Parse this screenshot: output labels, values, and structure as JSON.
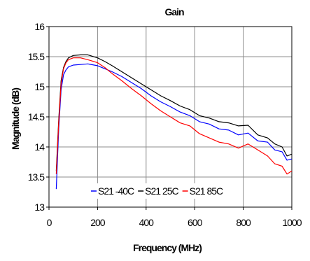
{
  "chart_data": {
    "type": "line",
    "title": "Gain",
    "xlabel": "Frequency (MHz)",
    "ylabel": "Magnitude (dB)",
    "xlim": [
      0,
      1000
    ],
    "ylim": [
      13,
      16
    ],
    "xticks": [
      "0",
      "200",
      "400",
      "600",
      "800",
      "1000"
    ],
    "yticks": [
      "13",
      "13.5",
      "14",
      "14.5",
      "15",
      "15.5",
      "16"
    ],
    "grid": true,
    "legend_position": "bottom-center",
    "series": [
      {
        "name": "S21 -40C",
        "color": "#0000ff",
        "x": [
          30,
          40,
          50,
          60,
          70,
          80,
          100,
          130,
          160,
          200,
          230,
          260,
          300,
          340,
          380,
          420,
          460,
          500,
          540,
          580,
          620,
          660,
          700,
          740,
          780,
          820,
          860,
          900,
          930,
          960,
          980,
          1000
        ],
        "y": [
          13.3,
          14.3,
          14.95,
          15.2,
          15.28,
          15.33,
          15.36,
          15.37,
          15.38,
          15.35,
          15.3,
          15.25,
          15.17,
          15.07,
          14.97,
          14.85,
          14.75,
          14.67,
          14.58,
          14.52,
          14.42,
          14.38,
          14.3,
          14.28,
          14.2,
          14.23,
          14.1,
          14.08,
          13.95,
          13.92,
          13.78,
          13.8
        ]
      },
      {
        "name": "S21 25C",
        "color": "#000000",
        "x": [
          30,
          40,
          50,
          60,
          70,
          80,
          100,
          130,
          160,
          200,
          230,
          260,
          300,
          340,
          380,
          420,
          460,
          500,
          540,
          580,
          620,
          660,
          700,
          740,
          780,
          820,
          860,
          900,
          930,
          960,
          980,
          1000
        ],
        "y": [
          13.6,
          14.45,
          15.1,
          15.32,
          15.42,
          15.48,
          15.52,
          15.53,
          15.53,
          15.48,
          15.42,
          15.35,
          15.25,
          15.15,
          15.05,
          14.95,
          14.85,
          14.77,
          14.68,
          14.62,
          14.52,
          14.48,
          14.42,
          14.4,
          14.35,
          14.36,
          14.2,
          14.15,
          14.05,
          14.0,
          13.85,
          13.88
        ]
      },
      {
        "name": "S21 85C",
        "color": "#ff0000",
        "x": [
          30,
          40,
          50,
          60,
          70,
          80,
          100,
          130,
          160,
          200,
          230,
          260,
          300,
          340,
          380,
          420,
          460,
          500,
          540,
          580,
          620,
          660,
          700,
          740,
          780,
          820,
          860,
          900,
          930,
          960,
          980,
          1000
        ],
        "y": [
          13.55,
          14.4,
          15.05,
          15.3,
          15.4,
          15.45,
          15.48,
          15.48,
          15.45,
          15.4,
          15.32,
          15.22,
          15.1,
          14.97,
          14.85,
          14.72,
          14.6,
          14.5,
          14.4,
          14.35,
          14.22,
          14.15,
          14.08,
          14.05,
          13.98,
          14.05,
          13.95,
          13.85,
          13.72,
          13.68,
          13.55,
          13.6
        ]
      }
    ]
  }
}
